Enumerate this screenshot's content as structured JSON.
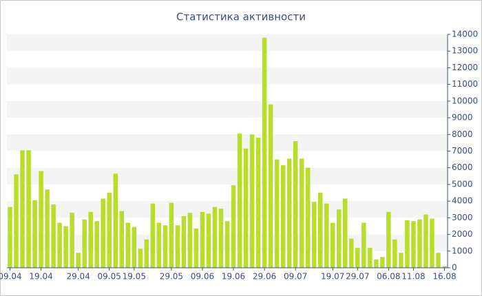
{
  "chart_data": {
    "type": "bar",
    "title": "Статистика активности",
    "categories": [
      "09.04",
      null,
      null,
      null,
      null,
      "19.04",
      null,
      null,
      null,
      null,
      null,
      "29.04",
      null,
      null,
      null,
      null,
      "09.05",
      null,
      null,
      null,
      "19.05",
      null,
      null,
      null,
      null,
      null,
      "29.05",
      null,
      null,
      null,
      null,
      "09.06",
      null,
      null,
      null,
      null,
      "19.06",
      null,
      null,
      null,
      null,
      "29.06",
      null,
      null,
      null,
      null,
      "09.07",
      null,
      null,
      null,
      null,
      null,
      "19.07",
      null,
      null,
      null,
      "29.07",
      null,
      null,
      null,
      null,
      "06.08",
      null,
      null,
      null,
      "11.08",
      null,
      null,
      null,
      null,
      "16.08"
    ],
    "values": [
      3650,
      5600,
      7050,
      7050,
      4050,
      5800,
      4700,
      3800,
      2700,
      2500,
      3300,
      900,
      2900,
      3350,
      2800,
      4150,
      4500,
      5650,
      3400,
      2700,
      2450,
      1150,
      1700,
      3850,
      2700,
      2550,
      3900,
      2550,
      3100,
      3300,
      2350,
      3350,
      3250,
      3650,
      3550,
      2800,
      4950,
      8050,
      7150,
      8000,
      7800,
      13800,
      9800,
      6500,
      6150,
      6550,
      7600,
      6550,
      6000,
      3950,
      4500,
      3850,
      2700,
      3500,
      4150,
      1750,
      1200,
      2700,
      1200,
      500,
      650,
      3350,
      1700,
      900,
      2850,
      2800,
      2900,
      3200,
      2950,
      900,
      100
    ],
    "color": "#b8de2c",
    "ylim": [
      0,
      14000
    ],
    "yticks": [
      0,
      1000,
      2000,
      3000,
      4000,
      5000,
      6000,
      7000,
      8000,
      9000,
      10000,
      11000,
      12000,
      13000,
      14000
    ],
    "grid": true
  }
}
